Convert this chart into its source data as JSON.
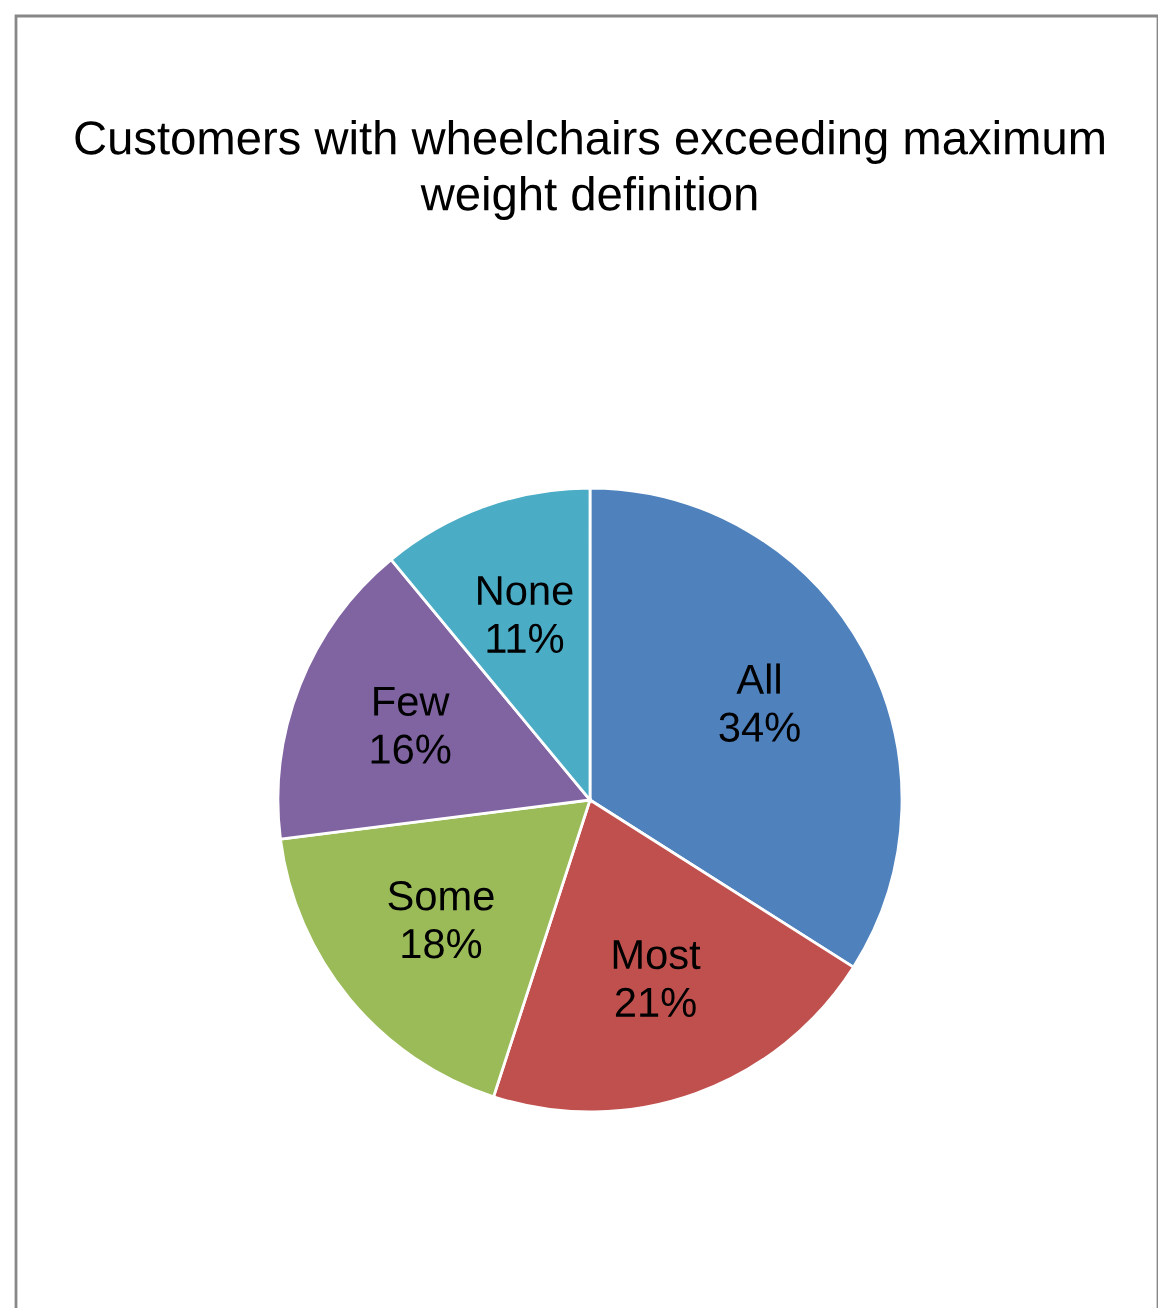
{
  "chart_data": {
    "type": "pie",
    "title": "Customers with wheelchairs exceeding maximum weight definition",
    "categories": [
      "All",
      "Most",
      "Some",
      "Few",
      "None"
    ],
    "values": [
      34,
      21,
      18,
      16,
      11
    ],
    "value_labels": [
      "34%",
      "21%",
      "18%",
      "16%",
      "11%"
    ],
    "colors": [
      "#4f81bd",
      "#c0504d",
      "#9bbb59",
      "#8064a2",
      "#4bacc6"
    ],
    "legend": false
  }
}
